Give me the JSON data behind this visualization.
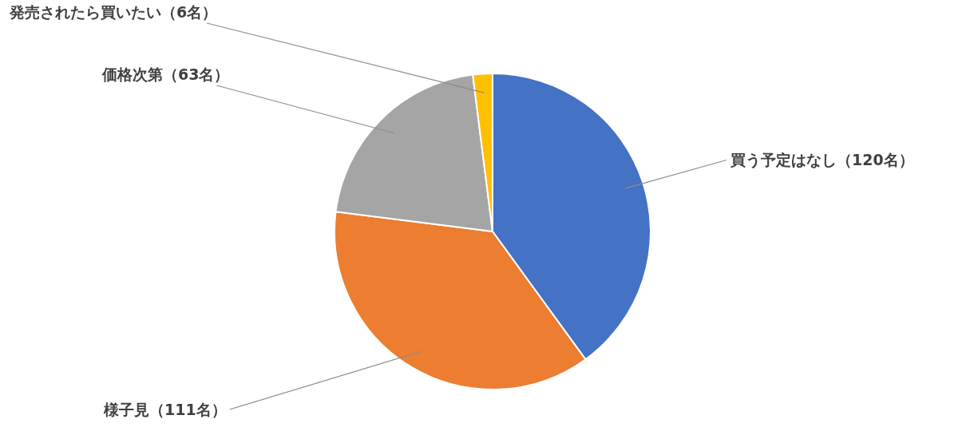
{
  "chart_data": {
    "type": "pie",
    "categories": [
      "買う予定はなし（120名）",
      "様子見（111名）",
      "価格次第（63名）",
      "発売されたら買いたい（6名）"
    ],
    "values": [
      120,
      111,
      63,
      6
    ],
    "colors": [
      "#4472c4",
      "#ed7d31",
      "#a5a5a5",
      "#ffc000"
    ]
  }
}
